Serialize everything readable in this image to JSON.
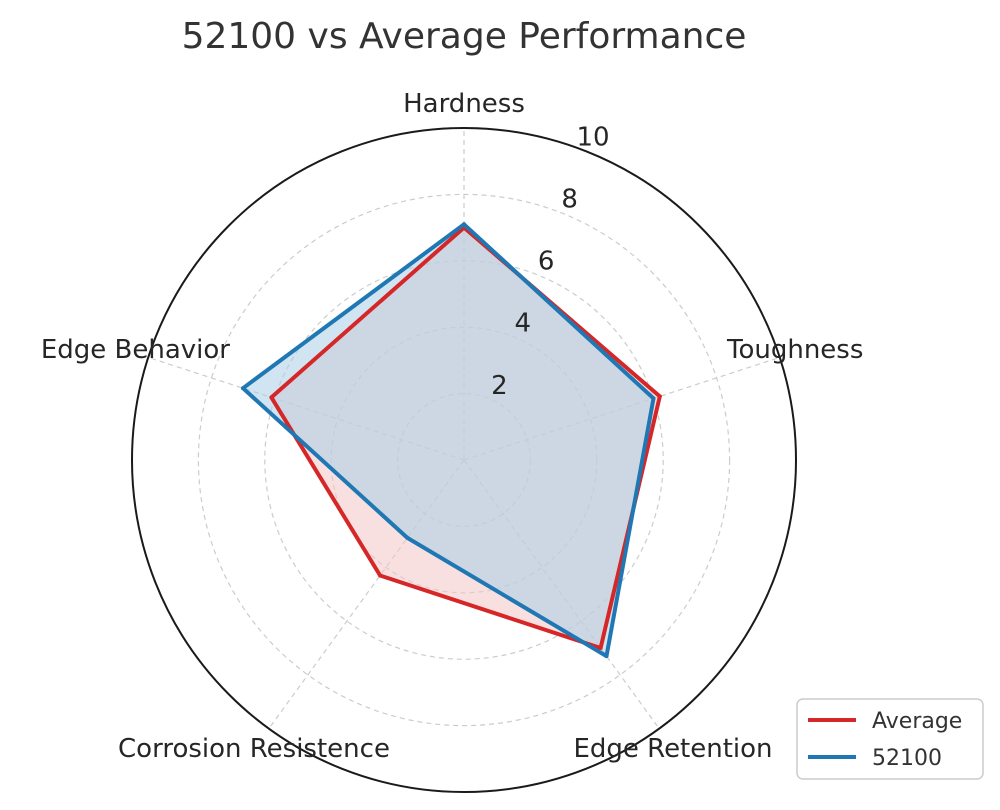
{
  "chart_data": {
    "type": "radar",
    "title": "52100 vs Average Performance",
    "categories": [
      "Hardness",
      "Toughness",
      "Edge Retention",
      "Corrosion Resistence",
      "Edge Behavior"
    ],
    "rlim": [
      0,
      10
    ],
    "rticks": [
      2,
      4,
      6,
      8,
      10
    ],
    "grid": true,
    "legend_position": "bottom-right",
    "series": [
      {
        "name": "Average",
        "values": [
          7.0,
          6.2,
          7.0,
          4.3,
          6.1
        ],
        "color": "#d62728",
        "fill": "#f4c6c6"
      },
      {
        "name": "52100",
        "values": [
          7.1,
          6.0,
          7.3,
          2.9,
          7.0
        ],
        "color": "#1f77b4",
        "fill": "#a9cfe6"
      }
    ]
  }
}
